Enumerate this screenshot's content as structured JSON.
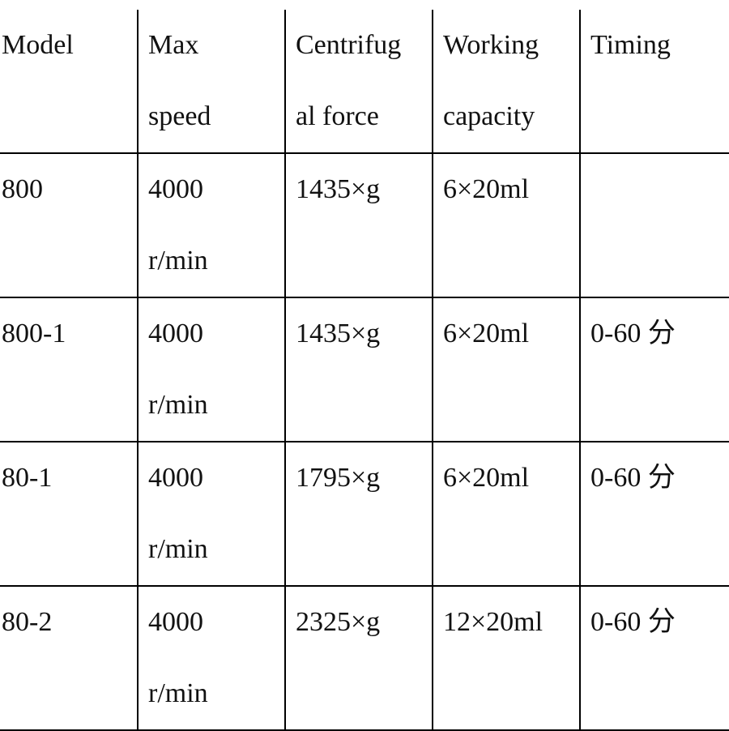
{
  "table": {
    "header": [
      "Model",
      "Max\nspeed",
      "Centrifug\nal force",
      "Working\ncapacity",
      "Timing"
    ],
    "rows": [
      [
        "800",
        "4000\nr/min",
        "1435×g",
        "6×20ml",
        null
      ],
      [
        "800-1",
        "4000\nr/min",
        "1435×g",
        "6×20ml",
        "0-60 分"
      ],
      [
        "80-1",
        "4000\nr/min",
        "1795×g",
        "6×20ml",
        "0-60 分"
      ],
      [
        "80-2",
        "4000\nr/min",
        "2325×g",
        "12×20ml",
        "0-60 分"
      ]
    ]
  }
}
